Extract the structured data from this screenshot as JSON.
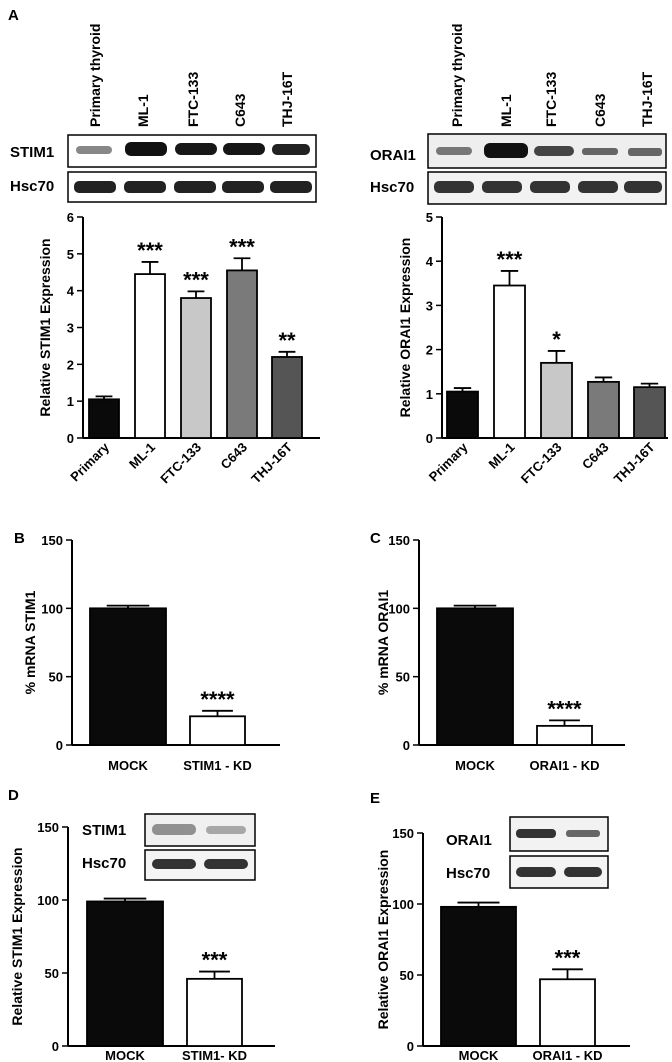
{
  "panels": {
    "A": "A",
    "B": "B",
    "C": "C",
    "D": "D",
    "E": "E"
  },
  "blots": {
    "A_left": {
      "lanes": [
        "Primary thyroid",
        "ML-1",
        "FTC-133",
        "C643",
        "THJ-16T"
      ],
      "rows": [
        "STIM1",
        "Hsc70"
      ]
    },
    "A_right": {
      "lanes": [
        "Primary thyroid",
        "ML-1",
        "FTC-133",
        "C643",
        "THJ-16T"
      ],
      "rows": [
        "ORAI1",
        "Hsc70"
      ]
    },
    "D": {
      "rows": [
        "STIM1",
        "Hsc70"
      ]
    },
    "E": {
      "rows": [
        "ORAI1",
        "Hsc70"
      ]
    }
  },
  "chart_data": [
    {
      "id": "A_left",
      "type": "bar",
      "ylabel": "Relative STIM1 Expression",
      "categories": [
        "Primary",
        "ML-1",
        "FTC-133",
        "C643",
        "THJ-16T"
      ],
      "values": [
        1.05,
        4.45,
        3.8,
        4.55,
        2.2
      ],
      "errors": [
        0.08,
        0.33,
        0.18,
        0.33,
        0.14
      ],
      "significance": [
        "",
        "***",
        "***",
        "***",
        "**"
      ],
      "colors": [
        "#0a0a0a",
        "#ffffff",
        "#c8c8c8",
        "#7a7a7a",
        "#555555"
      ],
      "ylim": [
        0,
        6
      ],
      "yticks": [
        "0",
        "1",
        "2",
        "3",
        "4",
        "5",
        "6"
      ]
    },
    {
      "id": "A_right",
      "type": "bar",
      "ylabel": "Relative ORAI1 Expression",
      "categories": [
        "Primary",
        "ML-1",
        "FTC-133",
        "C643",
        "THJ-16T"
      ],
      "values": [
        1.05,
        3.45,
        1.7,
        1.27,
        1.15
      ],
      "errors": [
        0.08,
        0.33,
        0.27,
        0.1,
        0.08
      ],
      "significance": [
        "",
        "***",
        "*",
        "",
        ""
      ],
      "colors": [
        "#0a0a0a",
        "#ffffff",
        "#c8c8c8",
        "#7a7a7a",
        "#555555"
      ],
      "ylim": [
        0,
        5
      ],
      "yticks": [
        "0",
        "1",
        "2",
        "3",
        "4",
        "5"
      ]
    },
    {
      "id": "B",
      "type": "bar",
      "ylabel": "% mRNA STIM1",
      "categories": [
        "MOCK",
        "STIM1 - KD"
      ],
      "values": [
        100,
        21
      ],
      "errors": [
        2,
        4
      ],
      "significance": [
        "",
        "****"
      ],
      "colors": [
        "#0a0a0a",
        "#ffffff"
      ],
      "ylim": [
        0,
        150
      ],
      "yticks": [
        "0",
        "50",
        "100",
        "150"
      ]
    },
    {
      "id": "C",
      "type": "bar",
      "ylabel": "% mRNA ORAI1",
      "categories": [
        "MOCK",
        "ORAI1 - KD"
      ],
      "values": [
        100,
        14
      ],
      "errors": [
        2,
        4
      ],
      "significance": [
        "",
        "****"
      ],
      "colors": [
        "#0a0a0a",
        "#ffffff"
      ],
      "ylim": [
        0,
        150
      ],
      "yticks": [
        "0",
        "50",
        "100",
        "150"
      ]
    },
    {
      "id": "D",
      "type": "bar",
      "ylabel": "Relative STIM1 Expression",
      "categories": [
        "MOCK",
        "STIM1- KD"
      ],
      "values": [
        99,
        46
      ],
      "errors": [
        2,
        5
      ],
      "significance": [
        "",
        "***"
      ],
      "colors": [
        "#0a0a0a",
        "#ffffff"
      ],
      "ylim": [
        0,
        150
      ],
      "yticks": [
        "0",
        "50",
        "100",
        "150"
      ]
    },
    {
      "id": "E",
      "type": "bar",
      "ylabel": "Relative ORAI1 Expression",
      "categories": [
        "MOCK",
        "ORAI1 - KD"
      ],
      "values": [
        98,
        47
      ],
      "errors": [
        3,
        7
      ],
      "significance": [
        "",
        "***"
      ],
      "colors": [
        "#0a0a0a",
        "#ffffff"
      ],
      "ylim": [
        0,
        150
      ],
      "yticks": [
        "0",
        "50",
        "100",
        "150"
      ]
    }
  ]
}
